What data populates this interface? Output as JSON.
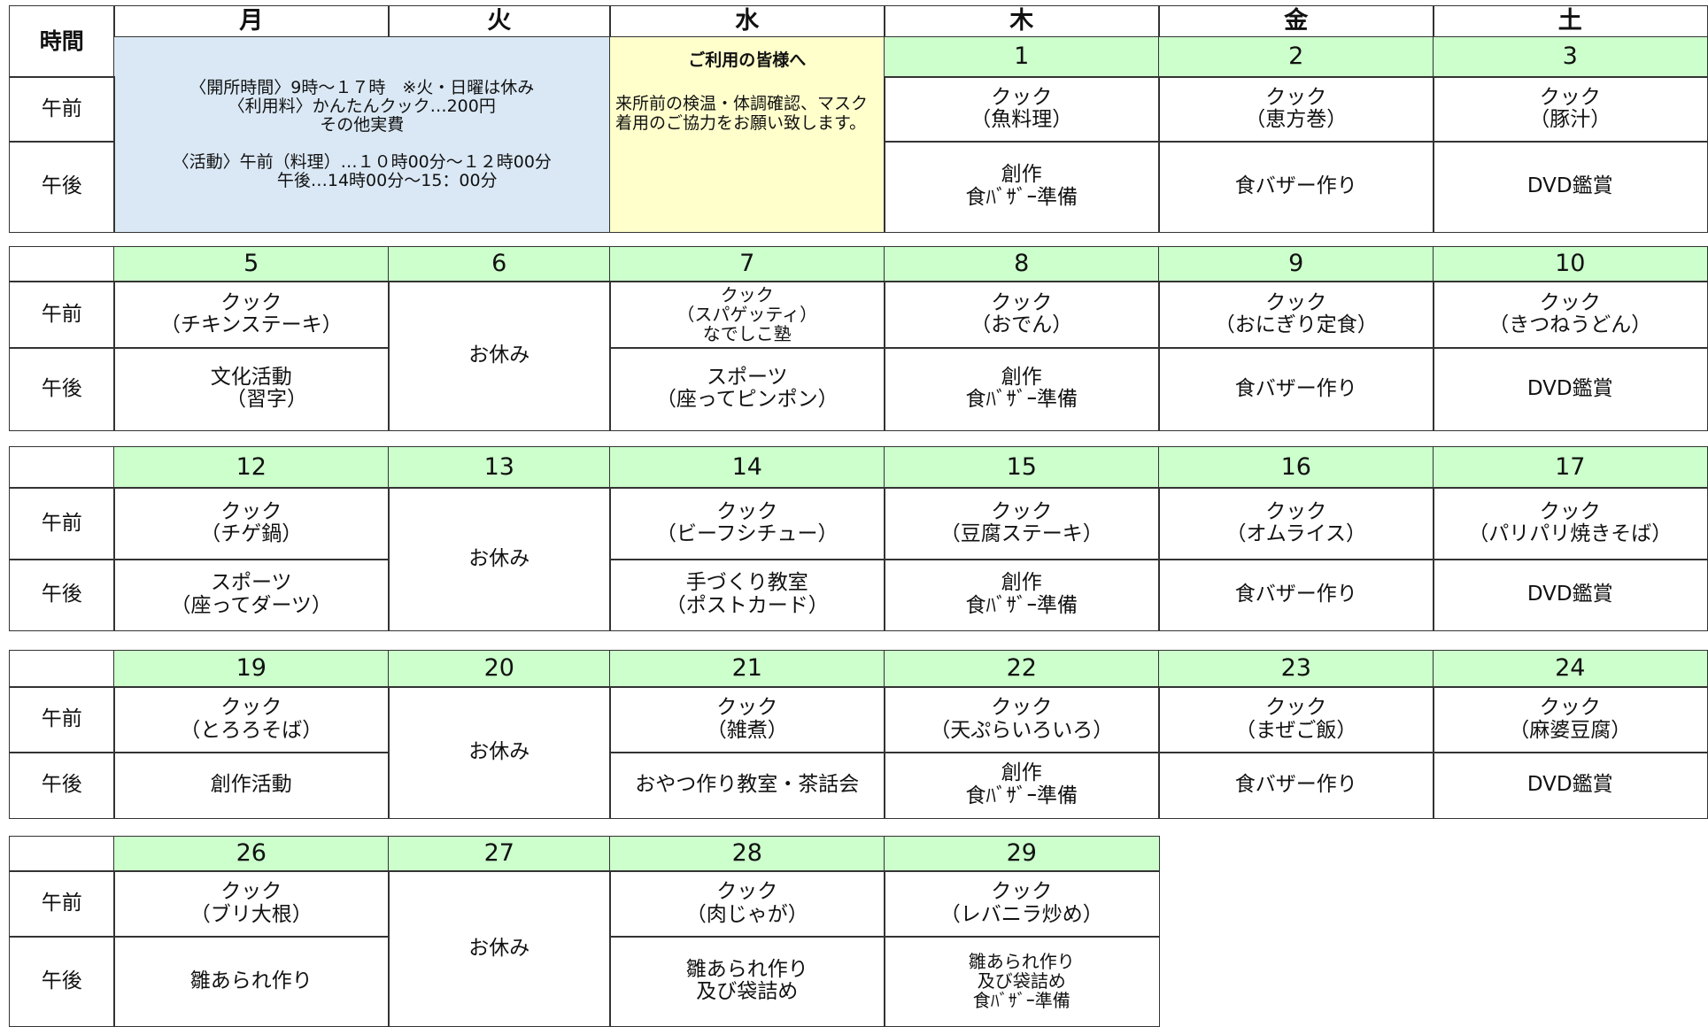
{
  "header": {
    "time_label": "時間",
    "days": [
      "月",
      "火",
      "水",
      "木",
      "金",
      "土"
    ]
  },
  "row_labels": {
    "am": "午前",
    "pm": "午後"
  },
  "notice": "〈開所時間〉9時～１７時　※火・日曜は休み\n〈利用料〉かんたんクック…200円\nその他実費\n\n〈活動〉午前（料理）…１０時00分～１２時00分\n　　　午後…14時00分～15：00分",
  "greeting": {
    "title": "ご利用の皆様へ",
    "body": "来所前の検温・体調確認、マスク着用のご協力をお願い致します。"
  },
  "weeks": [
    [
      null,
      null,
      null,
      {
        "date": "1",
        "am": "クック\n（魚料理）",
        "pm": "創作\n食ﾊﾞｻﾞｰ準備"
      },
      {
        "date": "2",
        "am": "クック\n（恵方巻）",
        "pm": "食バザー作り"
      },
      {
        "date": "3",
        "am": "クック\n（豚汁）",
        "pm": "DVD鑑賞"
      }
    ],
    [
      {
        "date": "5",
        "am": "クック\n（チキンステーキ）",
        "pm": "文化活動\n　　（習字）"
      },
      {
        "date": "6",
        "closed": "お休み"
      },
      {
        "date": "7",
        "am": "クック\n（スパゲッティ）\nなでしこ塾",
        "pm": "スポーツ\n（座ってピンポン）"
      },
      {
        "date": "8",
        "am": "クック\n（おでん）",
        "pm": "創作\n食ﾊﾞｻﾞｰ準備"
      },
      {
        "date": "9",
        "am": "クック\n（おにぎり定食）",
        "pm": "食バザー作り"
      },
      {
        "date": "10",
        "am": "クック\n（きつねうどん）",
        "pm": "DVD鑑賞"
      }
    ],
    [
      {
        "date": "12",
        "am": "クック\n（チゲ鍋）",
        "pm": "スポーツ\n（座ってダーツ）"
      },
      {
        "date": "13",
        "closed": "お休み"
      },
      {
        "date": "14",
        "am": "クック\n（ビーフシチュー）",
        "pm": "手づくり教室\n（ポストカード）"
      },
      {
        "date": "15",
        "am": "クック\n（豆腐ステーキ）",
        "pm": "創作\n食ﾊﾞｻﾞｰ準備"
      },
      {
        "date": "16",
        "am": "クック\n（オムライス）",
        "pm": "食バザー作り"
      },
      {
        "date": "17",
        "am": "クック\n（パリパリ焼きそば）",
        "pm": "DVD鑑賞"
      }
    ],
    [
      {
        "date": "19",
        "am": "クック\n（とろろそば）",
        "pm": "創作活動"
      },
      {
        "date": "20",
        "closed": "お休み"
      },
      {
        "date": "21",
        "am": "クック\n（雑煮）",
        "pm": "おやつ作り教室・茶話会"
      },
      {
        "date": "22",
        "am": "クック\n（天ぷらいろいろ）",
        "pm": "創作\n食ﾊﾞｻﾞｰ準備"
      },
      {
        "date": "23",
        "am": "クック\n（まぜご飯）",
        "pm": "食バザー作り"
      },
      {
        "date": "24",
        "am": "クック\n（麻婆豆腐）",
        "pm": "DVD鑑賞"
      }
    ],
    [
      {
        "date": "26",
        "am": "クック\n（ブリ大根）",
        "pm": "雛あられ作り"
      },
      {
        "date": "27",
        "closed": "お休み"
      },
      {
        "date": "28",
        "am": "クック\n（肉じゃが）",
        "pm": "雛あられ作り\n及び袋詰め"
      },
      {
        "date": "29",
        "am": "クック\n（レバニラ炒め）",
        "pm": "雛あられ作り\n及び袋詰め\n食ﾊﾞｻﾞｰ準備"
      },
      null,
      null
    ]
  ]
}
